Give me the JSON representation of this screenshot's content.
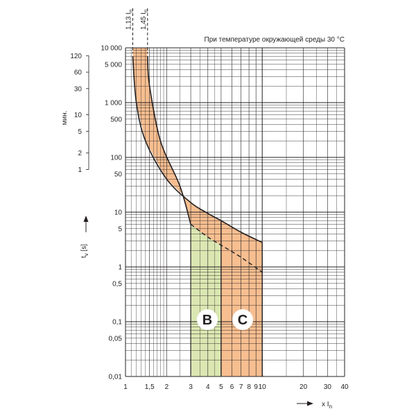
{
  "chart_data": {
    "type": "area",
    "title": "",
    "note": "При температуре окружающей среды 30 °C",
    "x_scale": "log",
    "y_scale": "log",
    "xlim": [
      1,
      40
    ],
    "ylim": [
      0.01,
      10000
    ],
    "x_tick_labels": [
      {
        "value": 1,
        "label": "1"
      },
      {
        "value": 1.5,
        "label": "1,5"
      },
      {
        "value": 2,
        "label": "2"
      },
      {
        "value": 3,
        "label": "3"
      },
      {
        "value": 4,
        "label": "4"
      },
      {
        "value": 5,
        "label": "5"
      },
      {
        "value": 6,
        "label": "6"
      },
      {
        "value": 7,
        "label": "7"
      },
      {
        "value": 8,
        "label": "8"
      },
      {
        "value": 9,
        "label": "9"
      },
      {
        "value": 10,
        "label": "10"
      },
      {
        "value": 20,
        "label": "20"
      },
      {
        "value": 30,
        "label": "30"
      },
      {
        "value": 40,
        "label": "40"
      }
    ],
    "y_tick_labels_seconds": [
      {
        "value": 10000,
        "label": "10 000"
      },
      {
        "value": 5000,
        "label": "5 000"
      },
      {
        "value": 1000,
        "label": "1 000"
      },
      {
        "value": 500,
        "label": "500"
      },
      {
        "value": 100,
        "label": "100"
      },
      {
        "value": 50,
        "label": "50"
      },
      {
        "value": 10,
        "label": "10"
      },
      {
        "value": 5,
        "label": "5"
      },
      {
        "value": 1,
        "label": "1"
      },
      {
        "value": 0.5,
        "label": "0,5"
      },
      {
        "value": 0.1,
        "label": "0,1"
      },
      {
        "value": 0.05,
        "label": "0,05"
      },
      {
        "value": 0.01,
        "label": "0,01"
      }
    ],
    "y_tick_labels_minutes": [
      {
        "value": 7200,
        "label": "120"
      },
      {
        "value": 3600,
        "label": "60"
      },
      {
        "value": 1800,
        "label": "30"
      },
      {
        "value": 600,
        "label": "10"
      },
      {
        "value": 300,
        "label": "5"
      },
      {
        "value": 120,
        "label": "2"
      },
      {
        "value": 60,
        "label": "1"
      }
    ],
    "minutes_axis_label": "мин.",
    "ylabel": "tv [s]",
    "ylabel_main": "t",
    "ylabel_sub": "v",
    "ylabel_unit": "[s]",
    "xlabel": "x In",
    "xlabel_main": "x I",
    "xlabel_sub": "n",
    "markers": [
      {
        "value": 1.13,
        "label": "1,13 In",
        "main": "1,13 I",
        "sub": "n"
      },
      {
        "value": 1.45,
        "label": "1,45 In",
        "main": "1,45 I",
        "sub": "n"
      }
    ],
    "thermal_band": {
      "upper_curve": [
        [
          1.13,
          7000
        ],
        [
          1.2,
          1000
        ],
        [
          1.4,
          200
        ],
        [
          2,
          40
        ],
        [
          3,
          15
        ],
        [
          4,
          9.5
        ],
        [
          5,
          7
        ],
        [
          7,
          4.3
        ],
        [
          10,
          2.8
        ]
      ],
      "lower_curve": [
        [
          1.45,
          7000
        ],
        [
          1.5,
          2000
        ],
        [
          1.8,
          200
        ],
        [
          2.5,
          30
        ],
        [
          3,
          6
        ],
        [
          4,
          3.5
        ],
        [
          5,
          2.5
        ],
        [
          7,
          1.5
        ],
        [
          10,
          0.8
        ]
      ],
      "color": "#f7be90"
    },
    "series": [
      {
        "name": "B",
        "magnetic_trip_range": [
          3,
          5
        ],
        "min_time_s": 0.01,
        "color": "#dbe7b2"
      },
      {
        "name": "C",
        "magnetic_trip_range": [
          5,
          10
        ],
        "min_time_s": 0.01,
        "color": "#f7be90"
      }
    ],
    "grid": true,
    "colors": {
      "grid": "#231f20",
      "curve": "#231f20",
      "badge": "#ffffff"
    }
  }
}
